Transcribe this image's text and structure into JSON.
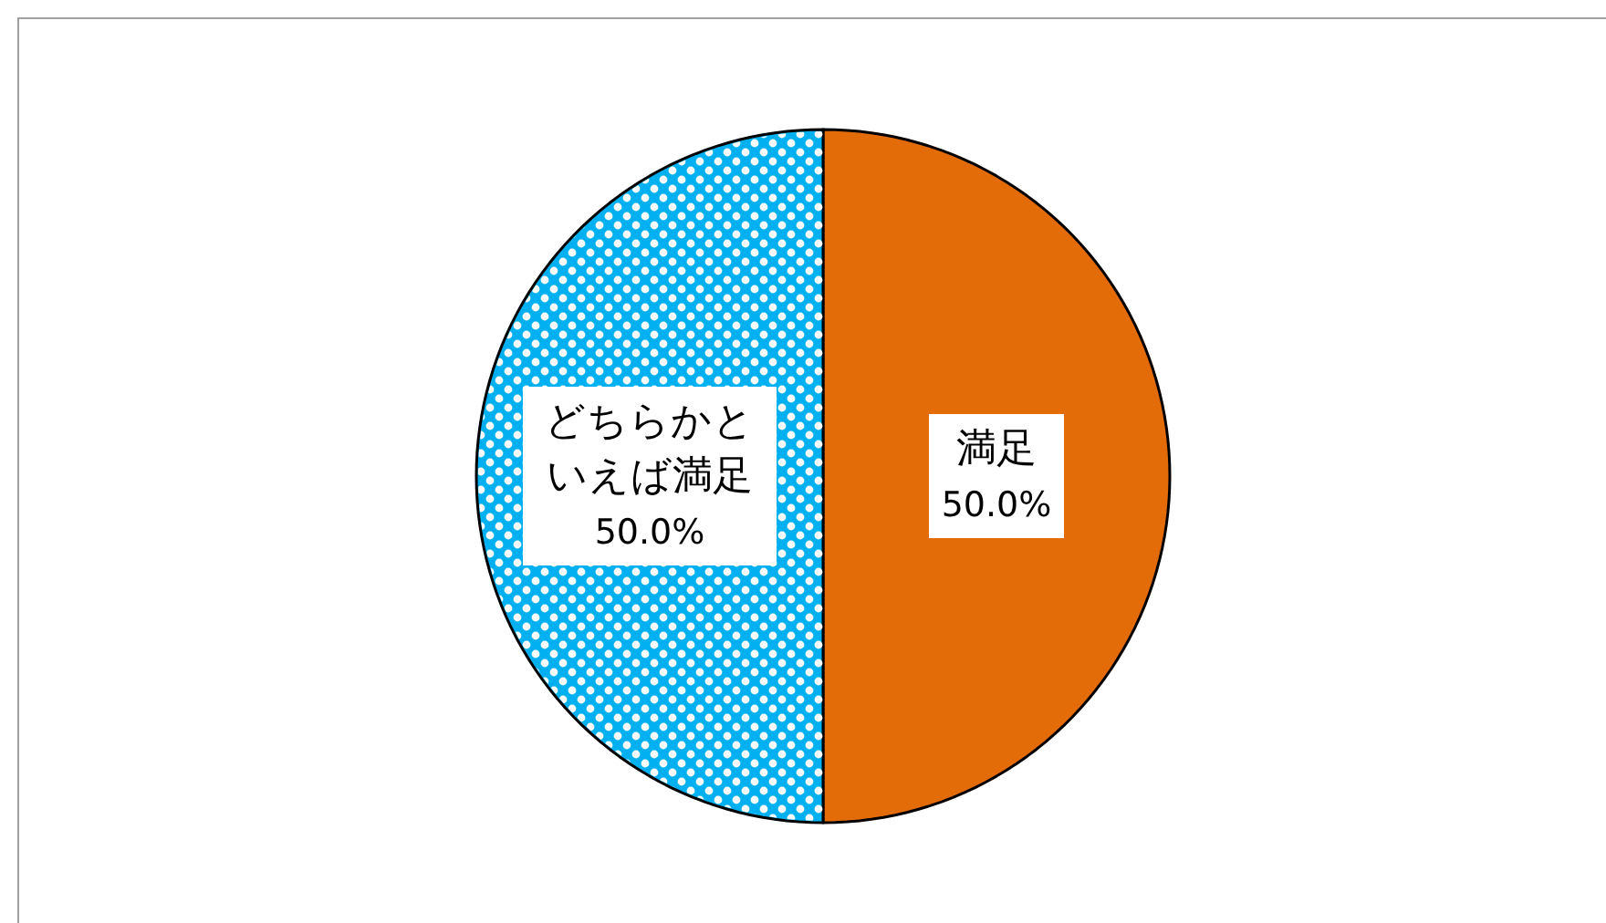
{
  "chart_data": {
    "type": "pie",
    "categories": [
      "満足",
      "どちらかといえば満足"
    ],
    "values": [
      50,
      50
    ],
    "colors": [
      "#e36c09",
      "#00b0f0"
    ],
    "value_labels": [
      "50.0%",
      "50.0%"
    ]
  }
}
